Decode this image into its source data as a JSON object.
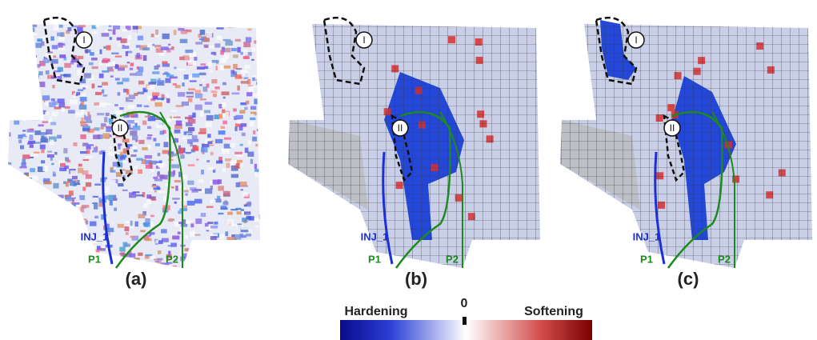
{
  "panels": [
    {
      "label": "(a)",
      "zones": [
        "I",
        "II"
      ],
      "wells": [
        "INJ_1",
        "P1",
        "P2"
      ]
    },
    {
      "label": "(b)",
      "zones": [
        "I",
        "II"
      ],
      "wells": [
        "INJ_1",
        "P1",
        "P2"
      ]
    },
    {
      "label": "(c)",
      "zones": [
        "I",
        "II"
      ],
      "wells": [
        "INJ_1",
        "P1",
        "P2"
      ]
    }
  ],
  "colorbar": {
    "left_label": "Hardening",
    "center_label": "0",
    "right_label": "Softening"
  }
}
